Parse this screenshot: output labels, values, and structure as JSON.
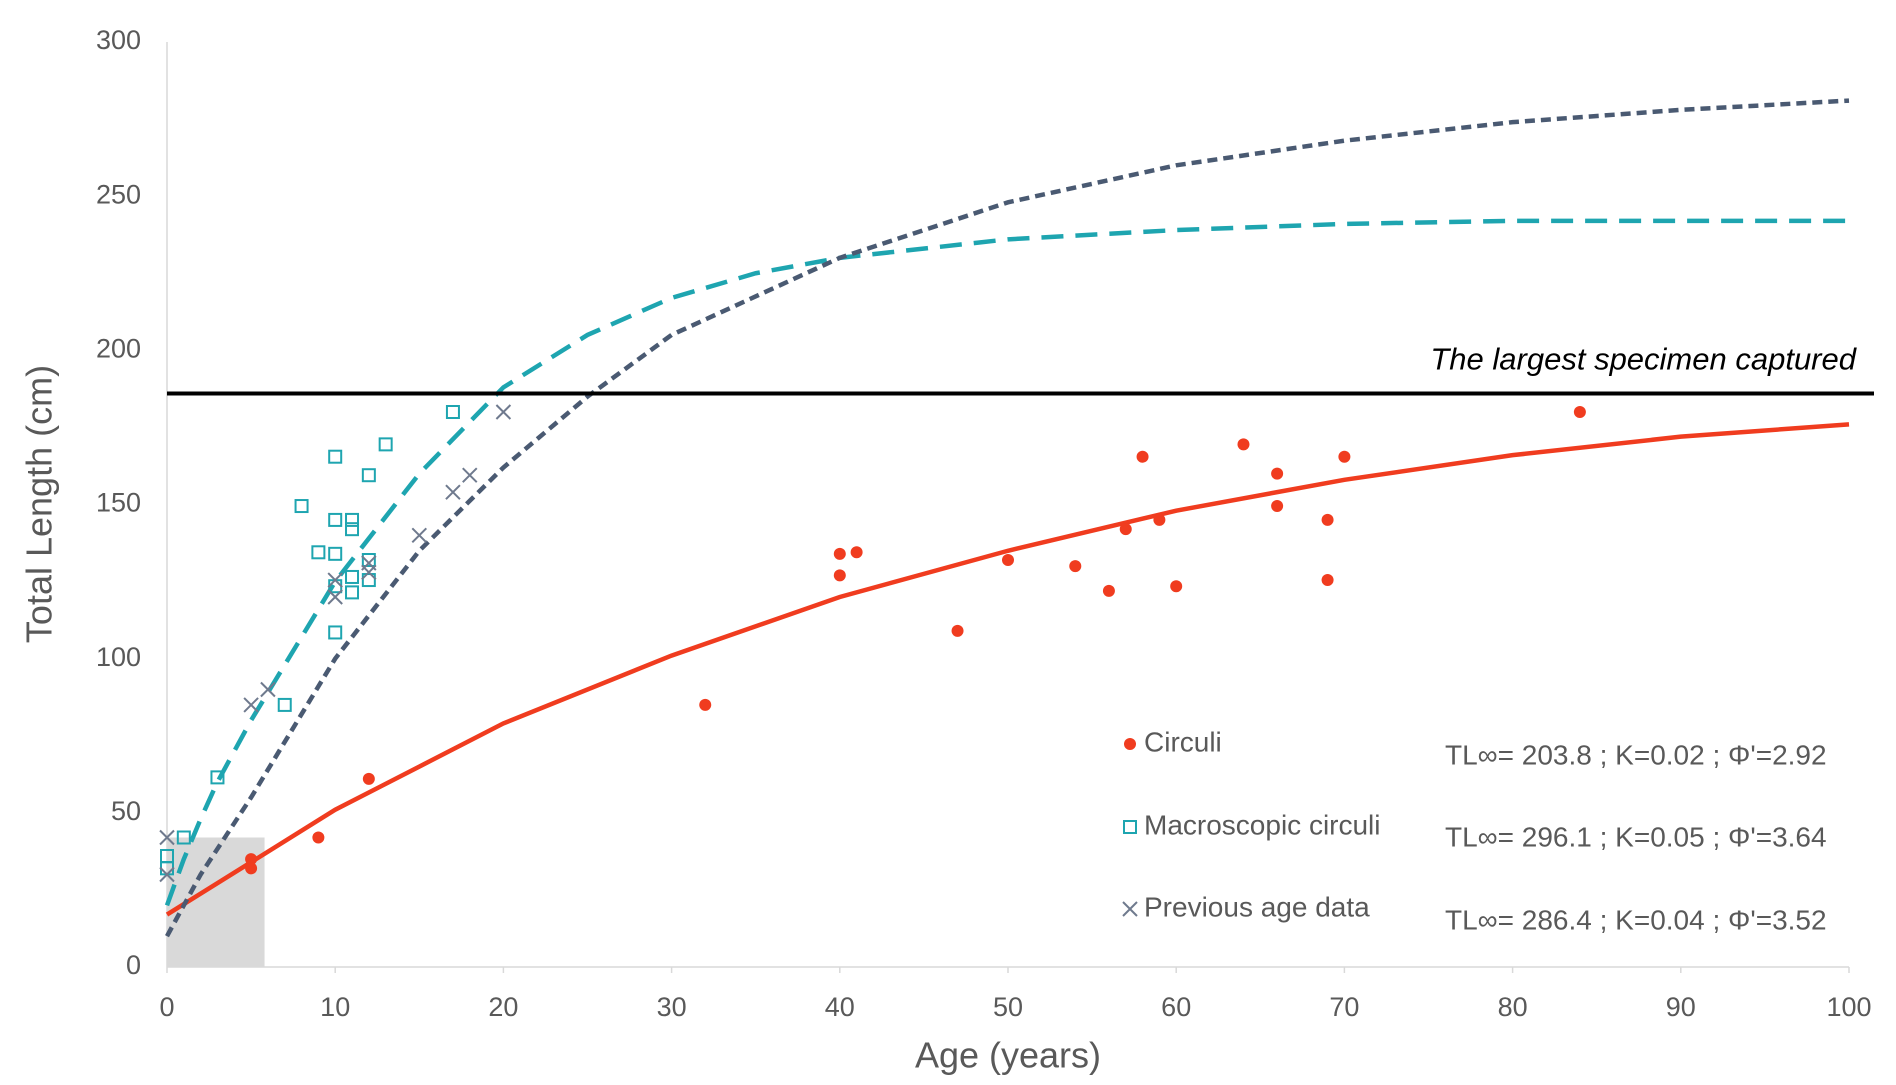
{
  "chart_data": {
    "type": "scatter",
    "x_label": "Age (years)",
    "y_label": "Total Length (cm)",
    "xlim": [
      0,
      100
    ],
    "ylim": [
      0,
      300
    ],
    "xticks": [
      0,
      10,
      20,
      30,
      40,
      50,
      60,
      70,
      80,
      90,
      100
    ],
    "yticks": [
      0,
      50,
      100,
      150,
      200,
      250,
      300
    ],
    "grid": false,
    "reference_line": {
      "value": 186,
      "label": "The largest specimen captured",
      "color": "#000000"
    },
    "shaded_region": {
      "x": [
        0,
        5.8
      ],
      "y": [
        0,
        42
      ],
      "color": "#d9d9d9"
    },
    "series": [
      {
        "name": "Circuli",
        "color": "#f03c1f",
        "marker": "circle",
        "annotation": "TL∞= 203.8 ; K=0.02 ; Φ'=2.92",
        "x": [
          5,
          5,
          9,
          12,
          32,
          40,
          41,
          40,
          47,
          50,
          54,
          56,
          57,
          58,
          59,
          60,
          64,
          66,
          66,
          69,
          69,
          70,
          84
        ],
        "values": [
          35,
          32,
          42,
          61,
          85,
          134,
          134.5,
          127,
          109,
          132,
          130,
          122,
          142,
          165.5,
          145,
          123.5,
          169.5,
          160,
          149.5,
          145,
          125.5,
          165.5,
          180
        ],
        "fit": {
          "style": "solid",
          "x": [
            0,
            5,
            10,
            15,
            20,
            30,
            40,
            50,
            60,
            70,
            80,
            90,
            100
          ],
          "values": [
            17,
            34,
            51,
            65,
            79,
            101,
            120,
            135,
            148,
            158,
            166,
            172,
            176
          ]
        }
      },
      {
        "name": "Macroscopic circuli",
        "color": "#1ea5b0",
        "marker": "square",
        "annotation": "TL∞= 296.1 ; K=0.05 ; Φ'=3.64",
        "x": [
          0,
          0,
          1,
          3,
          7,
          8,
          9,
          10,
          10,
          10,
          10,
          10,
          11,
          11,
          11,
          11,
          12,
          12,
          12,
          13,
          17
        ],
        "values": [
          36,
          32,
          42,
          61.5,
          85,
          149.5,
          134.5,
          165.5,
          145,
          134,
          123.5,
          108.5,
          145,
          142,
          126.5,
          121.5,
          159.5,
          132,
          125.5,
          169.5,
          180
        ],
        "fit": {
          "style": "dashed",
          "x": [
            0,
            1,
            2,
            3,
            5,
            7,
            10,
            15,
            20,
            25,
            30,
            35,
            40,
            50,
            60,
            70,
            80,
            90,
            100
          ],
          "values": [
            20,
            35,
            48,
            60,
            80,
            98,
            125,
            160,
            188,
            205,
            217,
            225,
            230,
            236,
            239,
            241,
            242,
            242,
            242
          ]
        }
      },
      {
        "name": "Previous age data",
        "color": "#6f7a8e",
        "marker": "x",
        "annotation": "TL∞= 286.4 ; K=0.04 ; Φ'=3.52",
        "x": [
          0,
          0,
          5,
          6,
          10,
          10,
          12,
          12,
          15,
          17,
          18,
          20
        ],
        "values": [
          42,
          30,
          85,
          90,
          125.5,
          120,
          131,
          128,
          140,
          154,
          159.5,
          180
        ],
        "fit": {
          "style": "dotted",
          "line_color": "#4a5a72",
          "x": [
            0,
            2,
            5,
            10,
            15,
            20,
            25,
            30,
            40,
            50,
            60,
            70,
            80,
            90,
            100
          ],
          "values": [
            10,
            30,
            55,
            100,
            135,
            162,
            185,
            205,
            230,
            248,
            260,
            268,
            274,
            278,
            281
          ]
        }
      }
    ]
  }
}
